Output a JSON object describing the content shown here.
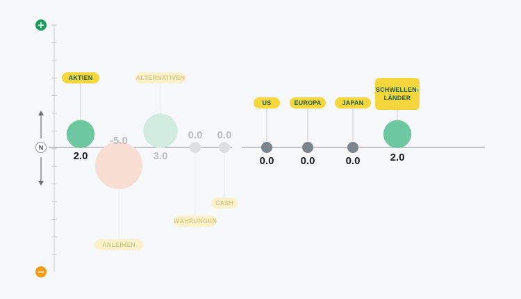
{
  "indicators": {
    "plus": "+",
    "minus": "−",
    "neutral": "N"
  },
  "colors": {
    "axis": "#8a8f96",
    "tag_active": "#f5d63d",
    "tag_active_text": "#1f5c46",
    "tag_faded": "#fbf2cc",
    "tag_faded_text": "#d6c98a",
    "plus": "#1a9b5b",
    "minus": "#f39a17",
    "neutral_dot": "#7d858c",
    "neutral_dot_faded": "#dcdee0",
    "positive_dot": "#6dc8a2",
    "positive_dot_faded": "#d3ece2",
    "negative_dot_faded": "#f8ddd3",
    "value_dark": "#161a1d",
    "value_faded": "#b9bdc1"
  },
  "chart_data": {
    "type": "scatter",
    "title": "",
    "y_range": [
      -7,
      7
    ],
    "categories": [
      {
        "label": "AKTIEN",
        "value": 2.0,
        "value_text": "2.0",
        "faded": false,
        "tone": "positive"
      },
      {
        "label": "ANLEIHEN",
        "value": -5.0,
        "value_text": "-5.0",
        "faded": true,
        "tone": "negative"
      },
      {
        "label": "ALTERNATIVEN",
        "value": 3.0,
        "value_text": "3.0",
        "faded": true,
        "tone": "positive"
      },
      {
        "label": "WÄHRUNGEN",
        "value": 0.0,
        "value_text": "0.0",
        "faded": true,
        "tone": "neutral"
      },
      {
        "label": "CASH",
        "value": 0.0,
        "value_text": "0.0",
        "faded": true,
        "tone": "neutral"
      },
      {
        "label": "US",
        "value": 0.0,
        "value_text": "0.0",
        "faded": false,
        "tone": "neutral"
      },
      {
        "label": "EUROPA",
        "value": 0.0,
        "value_text": "0.0",
        "faded": false,
        "tone": "neutral"
      },
      {
        "label": "JAPAN",
        "value": 0.0,
        "value_text": "0.0",
        "faded": false,
        "tone": "neutral"
      },
      {
        "label": "SCHWELLEN-|LÄNDER",
        "value": 2.0,
        "value_text": "2.0",
        "faded": false,
        "tone": "positive"
      }
    ]
  }
}
